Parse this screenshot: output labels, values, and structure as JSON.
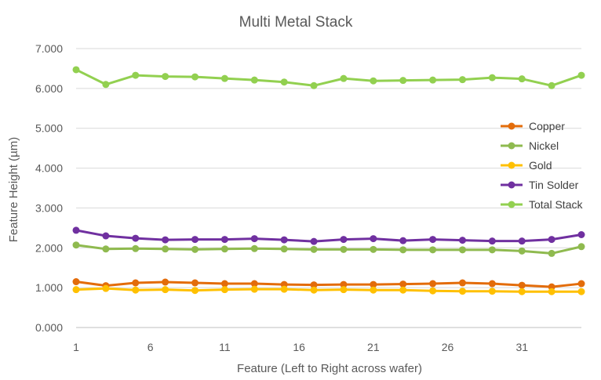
{
  "chart_data": {
    "type": "line",
    "title": "Multi Metal Stack",
    "xlabel": "Feature (Left to Right across wafer)",
    "ylabel": "Feature Height (µm)",
    "ylim": [
      0,
      7
    ],
    "yticks": [
      "0.000",
      "1.000",
      "2.000",
      "3.000",
      "4.000",
      "5.000",
      "6.000",
      "7.000"
    ],
    "xticks": [
      1,
      6,
      11,
      16,
      21,
      26,
      31
    ],
    "xlim": [
      1,
      35
    ],
    "grid": "horizontal",
    "legend_position": "right",
    "x": [
      1,
      3,
      5,
      7,
      9,
      11,
      13,
      15,
      17,
      19,
      21,
      23,
      25,
      27,
      29,
      31,
      33,
      35
    ],
    "series": [
      {
        "name": "Copper",
        "color": "#e36c0a",
        "values": [
          1.15,
          1.05,
          1.12,
          1.14,
          1.12,
          1.1,
          1.1,
          1.08,
          1.07,
          1.08,
          1.08,
          1.09,
          1.1,
          1.12,
          1.1,
          1.06,
          1.02,
          1.1
        ]
      },
      {
        "name": "Nickel",
        "color": "#8fba4f",
        "values": [
          2.07,
          1.97,
          1.98,
          1.97,
          1.96,
          1.97,
          1.98,
          1.97,
          1.96,
          1.96,
          1.96,
          1.95,
          1.95,
          1.95,
          1.95,
          1.92,
          1.86,
          2.03
        ]
      },
      {
        "name": "Gold",
        "color": "#ffc000",
        "values": [
          0.95,
          0.98,
          0.94,
          0.95,
          0.93,
          0.95,
          0.96,
          0.96,
          0.94,
          0.95,
          0.94,
          0.94,
          0.92,
          0.91,
          0.91,
          0.9,
          0.9,
          0.9
        ]
      },
      {
        "name": "Tin Solder",
        "color": "#7030a0",
        "values": [
          2.44,
          2.3,
          2.24,
          2.2,
          2.21,
          2.21,
          2.23,
          2.2,
          2.16,
          2.21,
          2.23,
          2.18,
          2.21,
          2.19,
          2.17,
          2.17,
          2.21,
          2.33
        ]
      },
      {
        "name": "Total Stack",
        "color": "#92d050",
        "values": [
          6.47,
          6.1,
          6.33,
          6.3,
          6.29,
          6.25,
          6.21,
          6.16,
          6.07,
          6.25,
          6.19,
          6.2,
          6.21,
          6.22,
          6.27,
          6.24,
          6.07,
          6.33
        ]
      }
    ]
  }
}
